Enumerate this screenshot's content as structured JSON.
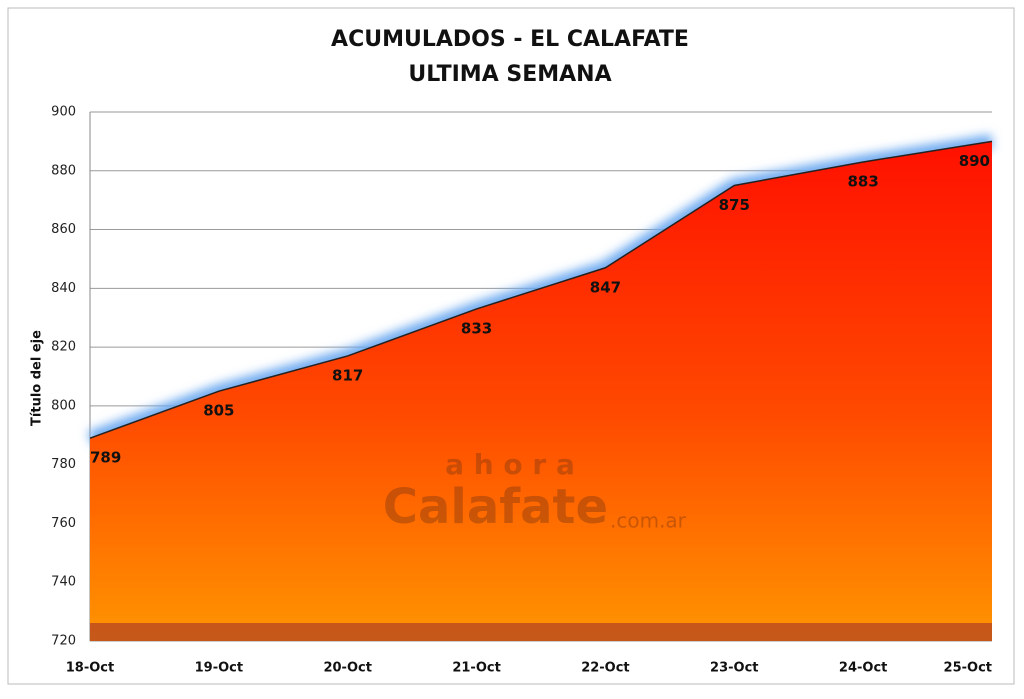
{
  "chart_data": {
    "type": "area",
    "title": "ACUMULADOS - EL CALAFATE",
    "subtitle": "ULTIMA SEMANA",
    "y_label": "Título del eje",
    "categories": [
      "18-Oct",
      "19-Oct",
      "20-Oct",
      "21-Oct",
      "22-Oct",
      "23-Oct",
      "24-Oct",
      "25-Oct"
    ],
    "values": [
      789,
      805,
      817,
      833,
      847,
      875,
      883,
      890
    ],
    "ylim": [
      720,
      900
    ],
    "yticks": [
      720,
      740,
      760,
      780,
      800,
      820,
      840,
      860,
      880,
      900
    ],
    "grid": true,
    "color": "#ff2a00",
    "watermark": {
      "top": "a h o r a",
      "main": "Calafate",
      "suffix": ".com.ar"
    }
  }
}
